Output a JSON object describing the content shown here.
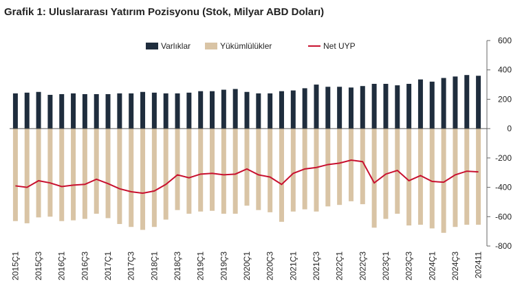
{
  "chart_data": {
    "type": "bar-line",
    "title": "Grafik 1: Uluslararası Yatırım Pozisyonu (Stok, Milyar ABD Doları)",
    "categories": [
      "2015Ç1",
      null,
      "2015Ç3",
      null,
      "2016Ç1",
      null,
      "2016Ç3",
      null,
      "2017Ç1",
      null,
      "2017Ç3",
      null,
      "2018Ç1",
      null,
      "2018Ç3",
      null,
      "2019Ç1",
      null,
      "2019Ç3",
      null,
      "2020Ç1",
      null,
      "2020Ç3",
      null,
      "2021Ç1",
      null,
      "2021Ç3",
      null,
      "2022Ç1",
      null,
      "2022Ç3",
      null,
      "2023Ç1",
      null,
      "2023Ç3",
      null,
      "2024Ç1",
      null,
      "2024Ç3",
      null,
      "202411"
    ],
    "series": [
      {
        "name": "Varlıklar",
        "color": "#1f2d3d",
        "kind": "bar",
        "values": [
          240,
          245,
          250,
          230,
          235,
          240,
          235,
          235,
          235,
          240,
          240,
          250,
          245,
          240,
          240,
          245,
          255,
          255,
          265,
          270,
          250,
          240,
          240,
          255,
          260,
          275,
          300,
          285,
          285,
          280,
          290,
          305,
          305,
          295,
          305,
          335,
          320,
          345,
          355,
          365,
          360
        ]
      },
      {
        "name": "Yükümlülükler",
        "color": "#d9c4a5",
        "kind": "bar",
        "values": [
          -630,
          -645,
          -605,
          -600,
          -630,
          -625,
          -615,
          -580,
          -610,
          -650,
          -670,
          -690,
          -670,
          -620,
          -555,
          -580,
          -565,
          -560,
          -580,
          -580,
          -525,
          -555,
          -570,
          -635,
          -565,
          -550,
          -565,
          -530,
          -520,
          -495,
          -515,
          -675,
          -615,
          -580,
          -660,
          -655,
          -680,
          -710,
          -670,
          -655,
          -655
        ]
      },
      {
        "name": "Net UYP",
        "color": "#c8102e",
        "kind": "line",
        "values": [
          -390,
          -400,
          -355,
          -370,
          -395,
          -385,
          -380,
          -345,
          -375,
          -410,
          -430,
          -440,
          -425,
          -380,
          -315,
          -335,
          -310,
          -305,
          -315,
          -310,
          -275,
          -315,
          -330,
          -380,
          -305,
          -275,
          -265,
          -245,
          -235,
          -215,
          -225,
          -370,
          -310,
          -285,
          -355,
          -320,
          -360,
          -365,
          -315,
          -290,
          -295
        ]
      }
    ],
    "ylim": [
      -800,
      600
    ],
    "yticks": [
      -800,
      -600,
      -400,
      -200,
      0,
      200,
      400,
      600
    ],
    "grid": false,
    "legend": "top"
  }
}
